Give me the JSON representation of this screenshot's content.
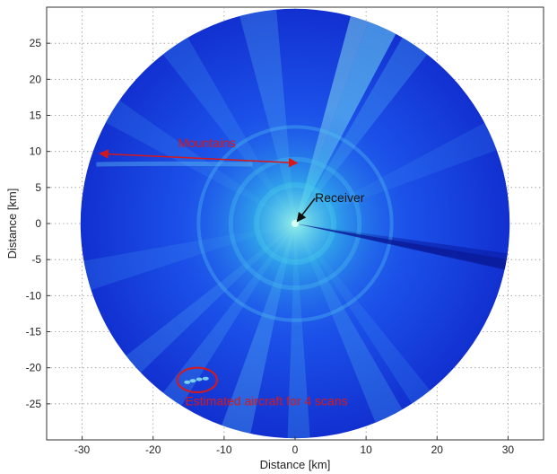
{
  "chart_data": {
    "type": "heatmap",
    "title": "",
    "xlabel": "Distance [km]",
    "ylabel": "Distance [km]",
    "xlim": [
      -35,
      35
    ],
    "ylim": [
      -30,
      30
    ],
    "xticks": [
      -30,
      -20,
      -10,
      0,
      10,
      20,
      30
    ],
    "yticks": [
      -25,
      -20,
      -15,
      -10,
      -5,
      0,
      5,
      10,
      15,
      20,
      25
    ],
    "grid": true,
    "radar_radius_km": 30,
    "colors": {
      "background_intensity": "#0a3be8",
      "low_intensity": "#1230d0",
      "high_intensity": "#36e0e0",
      "annotation": "#d81818",
      "receiver_annotation": "#111111"
    },
    "annotations": [
      {
        "id": "mountains",
        "text": "Mountains",
        "color": "#d81818",
        "from": [
          -27.5,
          9.7
        ],
        "to": [
          0.3,
          8.4
        ]
      },
      {
        "id": "receiver",
        "text": "Receiver",
        "color": "#111111",
        "from": [
          2.8,
          3.5
        ],
        "to": [
          0.3,
          0.3
        ]
      },
      {
        "id": "aircraft",
        "text": "Estimated aircraft for 4 scans",
        "color": "#d81818",
        "ellipse_center": [
          -13.8,
          -21.7
        ],
        "ellipse_radius": [
          2.8,
          1.7
        ]
      }
    ]
  }
}
